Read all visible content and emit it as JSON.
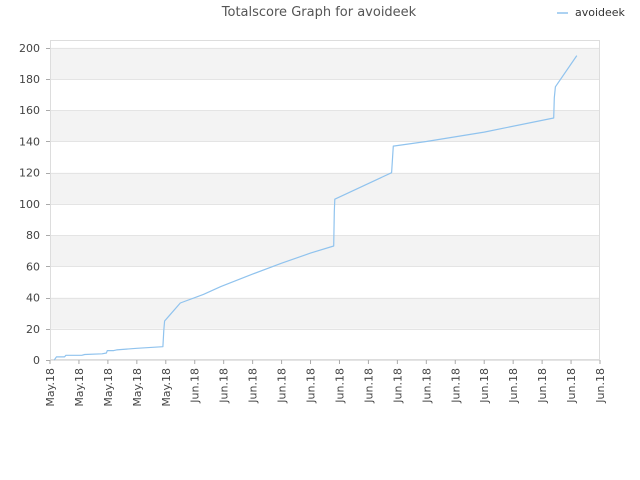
{
  "chart_data": {
    "type": "line",
    "title": "Totalscore Graph for avoideek",
    "xlabel": "",
    "ylabel": "",
    "ylim": [
      0,
      205
    ],
    "yticks": [
      0,
      20,
      40,
      60,
      80,
      100,
      120,
      140,
      160,
      180,
      200
    ],
    "xlim": [
      0,
      19
    ],
    "xtick_labels": [
      "May.18",
      "May.18",
      "May.18",
      "May.18",
      "May.18",
      "Jun.18",
      "Jun.18",
      "Jun.18",
      "Jun.18",
      "Jun.18",
      "Jun.18",
      "Jun.18",
      "Jun.18",
      "Jun.18",
      "Jun.18",
      "Jun.18",
      "Jun.18",
      "Jun.18",
      "Jun.18",
      "Jun.18"
    ],
    "grid": "horizontal, alternating bands",
    "legend_position": "top-right",
    "series": [
      {
        "name": "avoideek",
        "color": "#90c3ee",
        "points": [
          [
            0.15,
            0
          ],
          [
            0.22,
            2
          ],
          [
            0.5,
            2
          ],
          [
            0.55,
            3
          ],
          [
            1.1,
            3
          ],
          [
            1.2,
            3.5
          ],
          [
            1.8,
            4
          ],
          [
            1.95,
            4.5
          ],
          [
            1.98,
            6
          ],
          [
            2.2,
            6
          ],
          [
            2.3,
            6.5
          ],
          [
            3.0,
            7.5
          ],
          [
            3.9,
            8.5
          ],
          [
            3.93,
            19
          ],
          [
            3.96,
            25
          ],
          [
            4.1,
            28
          ],
          [
            4.5,
            36.5
          ],
          [
            5.3,
            42
          ],
          [
            5.9,
            47
          ],
          [
            7.0,
            55
          ],
          [
            8.0,
            62
          ],
          [
            9.0,
            68.5
          ],
          [
            9.8,
            73
          ],
          [
            9.82,
            95
          ],
          [
            9.84,
            103
          ],
          [
            11.8,
            120
          ],
          [
            11.82,
            126
          ],
          [
            11.86,
            137
          ],
          [
            13.0,
            140
          ],
          [
            15.0,
            146
          ],
          [
            17.4,
            155
          ],
          [
            17.42,
            168
          ],
          [
            17.46,
            175
          ],
          [
            18.2,
            195
          ]
        ]
      }
    ]
  }
}
